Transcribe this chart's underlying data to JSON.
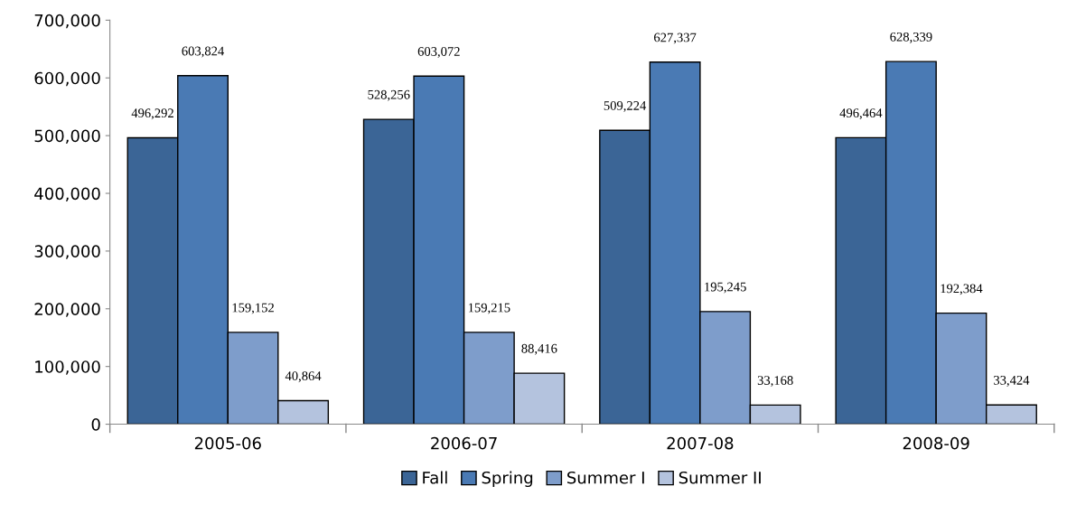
{
  "chart_data": {
    "type": "bar",
    "categories": [
      "2005-06",
      "2006-07",
      "2007-08",
      "2008-09"
    ],
    "series": [
      {
        "name": "Fall",
        "color": "#3b6596",
        "values": [
          496292,
          528256,
          509224,
          496464
        ],
        "value_labels": [
          "496,292",
          "528,256",
          "509,224",
          "496,464"
        ]
      },
      {
        "name": "Spring",
        "color": "#4a7ab4",
        "values": [
          603824,
          603072,
          627337,
          628339
        ],
        "value_labels": [
          "603,824",
          "603,072",
          "627,337",
          "628,339"
        ]
      },
      {
        "name": "Summer I",
        "color": "#7e9dcb",
        "values": [
          159152,
          159215,
          195245,
          192384
        ],
        "value_labels": [
          "159,152",
          "159,215",
          "195,245",
          "192,384"
        ]
      },
      {
        "name": "Summer II",
        "color": "#b4c3de",
        "values": [
          40864,
          88416,
          33168,
          33424
        ],
        "value_labels": [
          "40,864",
          "88,416",
          "33,168",
          "33,424"
        ]
      }
    ],
    "ylim": [
      0,
      700000
    ],
    "yticks": [
      {
        "value": 0,
        "label": "0"
      },
      {
        "value": 100000,
        "label": "100,000"
      },
      {
        "value": 200000,
        "label": "200,000"
      },
      {
        "value": 300000,
        "label": "300,000"
      },
      {
        "value": 400000,
        "label": "400,000"
      },
      {
        "value": 500000,
        "label": "500,000"
      },
      {
        "value": 600000,
        "label": "600,000"
      },
      {
        "value": 700000,
        "label": "700,000"
      }
    ],
    "grid": false,
    "legend": "bottom"
  }
}
